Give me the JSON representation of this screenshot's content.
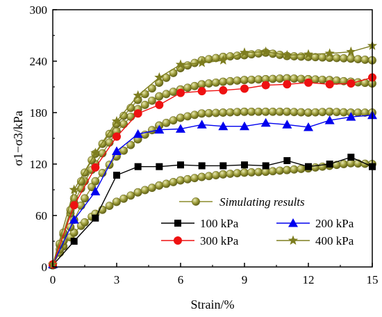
{
  "chart_data": {
    "type": "line",
    "xlabel": "Strain/%",
    "ylabel": "σ1−σ3/kPa",
    "xlim": [
      0,
      15
    ],
    "ylim": [
      0,
      300
    ],
    "xticks": [
      0,
      3,
      6,
      9,
      12,
      15
    ],
    "yticks": [
      0,
      60,
      120,
      180,
      240,
      300
    ],
    "legend_placement": "bottom-right",
    "series": [
      {
        "name": "100 kPa",
        "marker": "square",
        "color": "#000000",
        "x": [
          0,
          1,
          2,
          3,
          4,
          5,
          6,
          7,
          8,
          9,
          10,
          11,
          12,
          13,
          14,
          15
        ],
        "y": [
          2,
          30,
          57,
          107,
          117,
          117,
          119,
          118,
          118,
          119,
          118,
          124,
          117,
          120,
          128,
          117
        ]
      },
      {
        "name": "200 kPa",
        "marker": "triangle",
        "color": "#0000ee",
        "x": [
          0,
          1,
          2,
          3,
          4,
          5,
          6,
          7,
          8,
          9,
          10,
          11,
          12,
          13,
          14,
          15
        ],
        "y": [
          3,
          55,
          88,
          135,
          155,
          160,
          161,
          166,
          164,
          164,
          168,
          166,
          163,
          171,
          175,
          177
        ]
      },
      {
        "name": "300 kPa",
        "marker": "circle",
        "color": "#ee1111",
        "x": [
          0,
          1,
          2,
          3,
          4,
          5,
          6,
          7,
          8,
          9,
          10,
          11,
          12,
          13,
          14,
          15
        ],
        "y": [
          3,
          72,
          116,
          152,
          179,
          189,
          203,
          205,
          206,
          208,
          212,
          213,
          215,
          213,
          214,
          221
        ]
      },
      {
        "name": "400 kPa",
        "marker": "star",
        "color": "#7d7d1f",
        "x": [
          0,
          1,
          2,
          3,
          4,
          5,
          6,
          7,
          8,
          9,
          10,
          11,
          12,
          13,
          14,
          15
        ],
        "y": [
          3,
          90,
          133,
          170,
          200,
          221,
          236,
          238,
          241,
          250,
          251,
          247,
          248,
          249,
          251,
          258
        ]
      }
    ],
    "simulated": {
      "name": "Simulating results",
      "marker": "sphere",
      "color": "#8c8c2c",
      "curves": [
        {
          "x": [
            0,
            0.5,
            1,
            1.5,
            2,
            3,
            4,
            5,
            6,
            7,
            8,
            9,
            10,
            11,
            12,
            13,
            14,
            15
          ],
          "y": [
            2,
            24,
            40,
            52,
            62,
            76,
            87,
            95,
            101,
            105,
            108,
            110,
            111,
            113,
            115,
            118,
            121,
            120
          ]
        },
        {
          "x": [
            0,
            0.5,
            1,
            1.5,
            2,
            3,
            4,
            5,
            6,
            7,
            8,
            9,
            10,
            11,
            12,
            13,
            14,
            15
          ],
          "y": [
            2,
            30,
            55,
            80,
            100,
            129,
            149,
            165,
            174,
            179,
            180,
            181,
            181,
            181,
            180,
            181,
            180,
            180
          ]
        },
        {
          "x": [
            0,
            0.5,
            1,
            1.5,
            2,
            3,
            4,
            5,
            6,
            7,
            8,
            9,
            10,
            11,
            12,
            13,
            14,
            15
          ],
          "y": [
            2,
            38,
            75,
            100,
            120,
            158,
            184,
            199,
            207,
            213,
            216,
            218,
            219,
            220,
            219,
            218,
            216,
            214
          ]
        },
        {
          "x": [
            0,
            0.5,
            1,
            1.5,
            2,
            3,
            4,
            5,
            6,
            7,
            8,
            9,
            10,
            11,
            12,
            13,
            14,
            15
          ],
          "y": [
            2,
            40,
            80,
            110,
            132,
            167,
            195,
            215,
            232,
            241,
            245,
            247,
            250,
            246,
            245,
            244,
            243,
            241
          ]
        }
      ]
    }
  }
}
